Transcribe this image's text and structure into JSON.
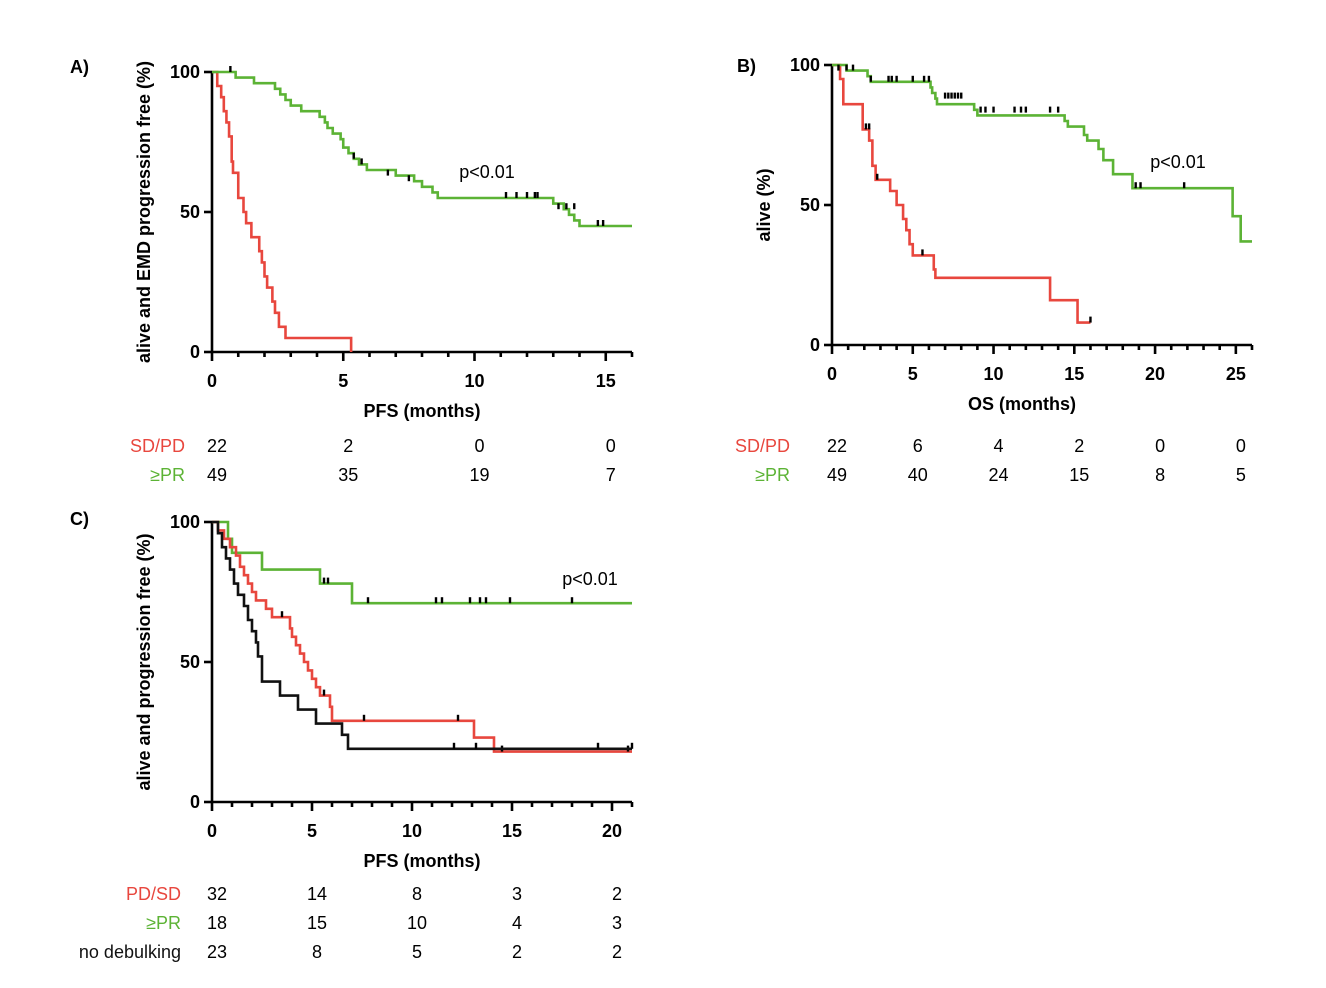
{
  "chart_data": [
    {
      "type": "line",
      "panel_label": "A)",
      "xlabel": "PFS (months)",
      "ylabel": "alive and EMD progression free  (%)",
      "xlim": [
        0,
        16
      ],
      "ylim": [
        0,
        100
      ],
      "xticks": [
        0,
        5,
        10,
        15
      ],
      "yticks": [
        0,
        50,
        100
      ],
      "annotation": "p<0.01",
      "series": [
        {
          "name": "SD/PD",
          "color": "#e8473e",
          "steps": [
            [
              0,
              100
            ],
            [
              0.2,
              95
            ],
            [
              0.35,
              91
            ],
            [
              0.45,
              86
            ],
            [
              0.55,
              82
            ],
            [
              0.65,
              77
            ],
            [
              0.75,
              68
            ],
            [
              0.8,
              64
            ],
            [
              1.0,
              55
            ],
            [
              1.2,
              50
            ],
            [
              1.3,
              46
            ],
            [
              1.5,
              41
            ],
            [
              1.8,
              36
            ],
            [
              1.9,
              32
            ],
            [
              2.0,
              27
            ],
            [
              2.1,
              23
            ],
            [
              2.3,
              18
            ],
            [
              2.4,
              14
            ],
            [
              2.55,
              9
            ],
            [
              2.8,
              5
            ],
            [
              5.3,
              0
            ]
          ],
          "end_x": 5.3,
          "censored": []
        },
        {
          "name": "≥PR",
          "color": "#5cb335",
          "steps": [
            [
              0,
              100
            ],
            [
              0.9,
              98
            ],
            [
              1.6,
              96
            ],
            [
              2.4,
              94
            ],
            [
              2.6,
              92
            ],
            [
              2.8,
              90
            ],
            [
              3.0,
              88
            ],
            [
              3.4,
              86
            ],
            [
              4.1,
              84
            ],
            [
              4.3,
              82
            ],
            [
              4.4,
              80
            ],
            [
              4.6,
              78
            ],
            [
              4.9,
              76
            ],
            [
              5.0,
              73
            ],
            [
              5.2,
              71
            ],
            [
              5.4,
              69
            ],
            [
              5.6,
              67
            ],
            [
              5.9,
              65
            ],
            [
              7.0,
              63
            ],
            [
              7.7,
              61
            ],
            [
              8.0,
              59
            ],
            [
              8.4,
              57
            ],
            [
              8.6,
              55
            ],
            [
              13.0,
              53
            ],
            [
              13.4,
              51
            ],
            [
              13.6,
              49
            ],
            [
              13.8,
              47
            ],
            [
              14.0,
              45
            ]
          ],
          "end_x": 16,
          "censored": [
            [
              0.7,
              100
            ],
            [
              5.4,
              69
            ],
            [
              5.7,
              67
            ],
            [
              6.7,
              63
            ],
            [
              7.5,
              61
            ],
            [
              11.2,
              55
            ],
            [
              11.6,
              55
            ],
            [
              12.0,
              55
            ],
            [
              12.3,
              55
            ],
            [
              12.4,
              55
            ],
            [
              13.2,
              51
            ],
            [
              13.5,
              51
            ],
            [
              13.8,
              51
            ],
            [
              14.7,
              45
            ],
            [
              14.9,
              45
            ]
          ]
        }
      ],
      "risk_table": {
        "time_points": [
          0,
          5,
          10,
          15
        ],
        "rows": [
          {
            "label": "SD/PD",
            "color": "#e8473e",
            "values": [
              "22",
              "2",
              "0",
              "0"
            ]
          },
          {
            "label": "≥PR",
            "color": "#5cb335",
            "values": [
              "49",
              "35",
              "19",
              "7"
            ]
          }
        ]
      }
    },
    {
      "type": "line",
      "panel_label": "B)",
      "xlabel": "OS (months)",
      "ylabel": "alive (%)",
      "xlim": [
        0,
        26
      ],
      "ylim": [
        0,
        100
      ],
      "xticks": [
        0,
        5,
        10,
        15,
        20,
        25
      ],
      "yticks": [
        0,
        50,
        100
      ],
      "annotation": "p<0.01",
      "series": [
        {
          "name": "SD/PD",
          "color": "#e8473e",
          "steps": [
            [
              0,
              100
            ],
            [
              0.5,
              95
            ],
            [
              0.7,
              86
            ],
            [
              1.9,
              77
            ],
            [
              2.3,
              73
            ],
            [
              2.5,
              64
            ],
            [
              2.7,
              59
            ],
            [
              3.6,
              55
            ],
            [
              4.0,
              50
            ],
            [
              4.4,
              45
            ],
            [
              4.6,
              41
            ],
            [
              4.8,
              36
            ],
            [
              5.0,
              32
            ],
            [
              6.3,
              27
            ],
            [
              6.4,
              24
            ],
            [
              13.5,
              16
            ],
            [
              15.2,
              8
            ]
          ],
          "end_x": 16,
          "censored": [
            [
              2.1,
              77
            ],
            [
              2.3,
              77
            ],
            [
              2.8,
              59
            ],
            [
              5.6,
              32
            ],
            [
              16.0,
              8
            ]
          ]
        },
        {
          "name": "≥PR",
          "color": "#5cb335",
          "steps": [
            [
              0,
              100
            ],
            [
              0.9,
              98
            ],
            [
              2.2,
              96
            ],
            [
              2.4,
              94
            ],
            [
              6.1,
              92
            ],
            [
              6.2,
              90
            ],
            [
              6.4,
              88
            ],
            [
              6.5,
              86
            ],
            [
              8.8,
              84
            ],
            [
              9.0,
              82
            ],
            [
              14.4,
              80
            ],
            [
              14.6,
              78
            ],
            [
              15.6,
              75
            ],
            [
              15.8,
              73
            ],
            [
              16.5,
              70
            ],
            [
              16.8,
              66
            ],
            [
              17.4,
              61
            ],
            [
              18.6,
              56
            ],
            [
              24.8,
              46
            ],
            [
              25.3,
              37
            ]
          ],
          "end_x": 26,
          "censored": [
            [
              0.4,
              98
            ],
            [
              0.9,
              98
            ],
            [
              1.3,
              98
            ],
            [
              2.4,
              94
            ],
            [
              3.5,
              94
            ],
            [
              3.7,
              94
            ],
            [
              4.0,
              94
            ],
            [
              5.0,
              94
            ],
            [
              5.7,
              94
            ],
            [
              6.0,
              94
            ],
            [
              7.0,
              88
            ],
            [
              7.2,
              88
            ],
            [
              7.4,
              88
            ],
            [
              7.6,
              88
            ],
            [
              7.8,
              88
            ],
            [
              8.0,
              88
            ],
            [
              9.2,
              83
            ],
            [
              9.5,
              83
            ],
            [
              10.0,
              83
            ],
            [
              11.3,
              83
            ],
            [
              11.7,
              83
            ],
            [
              12.0,
              83
            ],
            [
              13.5,
              83
            ],
            [
              14.0,
              83
            ],
            [
              18.8,
              56
            ],
            [
              19.1,
              56
            ],
            [
              21.8,
              56
            ]
          ]
        }
      ],
      "risk_table": {
        "time_points": [
          0,
          5,
          10,
          15,
          20,
          25
        ],
        "rows": [
          {
            "label": "SD/PD",
            "color": "#e8473e",
            "values": [
              "22",
              "6",
              "4",
              "2",
              "0",
              "0"
            ]
          },
          {
            "label": "≥PR",
            "color": "#5cb335",
            "values": [
              "49",
              "40",
              "24",
              "15",
              "8",
              "5"
            ]
          }
        ]
      }
    },
    {
      "type": "line",
      "panel_label": "C)",
      "xlabel": "PFS (months)",
      "ylabel": "alive and progression free (%)",
      "xlim": [
        0,
        21
      ],
      "ylim": [
        0,
        100
      ],
      "xticks": [
        0,
        5,
        10,
        15,
        20
      ],
      "yticks": [
        0,
        50,
        100
      ],
      "annotation": "p<0.01",
      "series": [
        {
          "name": "≥PR",
          "color": "#5cb335",
          "steps": [
            [
              0,
              100
            ],
            [
              0.8,
              94
            ],
            [
              1.0,
              89
            ],
            [
              2.5,
              83
            ],
            [
              5.4,
              78
            ],
            [
              7.0,
              71
            ]
          ],
          "end_x": 21,
          "censored": [
            [
              5.6,
              78
            ],
            [
              5.8,
              78
            ],
            [
              7.8,
              71
            ],
            [
              11.2,
              71
            ],
            [
              11.5,
              71
            ],
            [
              12.9,
              71
            ],
            [
              13.4,
              71
            ],
            [
              13.7,
              71
            ],
            [
              14.9,
              71
            ],
            [
              18.0,
              71
            ]
          ]
        },
        {
          "name": "PD/SD",
          "color": "#e8473e",
          "steps": [
            [
              0,
              100
            ],
            [
              0.3,
              97
            ],
            [
              0.6,
              94
            ],
            [
              0.9,
              91
            ],
            [
              1.2,
              88
            ],
            [
              1.4,
              84
            ],
            [
              1.6,
              81
            ],
            [
              1.8,
              78
            ],
            [
              2.0,
              75
            ],
            [
              2.2,
              72
            ],
            [
              2.7,
              69
            ],
            [
              3.0,
              66
            ],
            [
              3.9,
              62
            ],
            [
              4.0,
              59
            ],
            [
              4.2,
              56
            ],
            [
              4.4,
              53
            ],
            [
              4.6,
              50
            ],
            [
              4.8,
              47
            ],
            [
              5.0,
              44
            ],
            [
              5.2,
              41
            ],
            [
              5.4,
              38
            ],
            [
              5.9,
              34
            ],
            [
              6.0,
              29
            ],
            [
              13.1,
              23
            ],
            [
              14.1,
              18
            ]
          ],
          "end_x": 21,
          "censored": [
            [
              3.5,
              66
            ],
            [
              5.6,
              38
            ],
            [
              7.6,
              29
            ],
            [
              12.3,
              29
            ],
            [
              14.5,
              18
            ],
            [
              20.8,
              18
            ]
          ]
        },
        {
          "name": "no debulking",
          "color": "#111111",
          "steps": [
            [
              0,
              100
            ],
            [
              0.3,
              96
            ],
            [
              0.5,
              91
            ],
            [
              0.7,
              87
            ],
            [
              0.9,
              83
            ],
            [
              1.1,
              78
            ],
            [
              1.3,
              74
            ],
            [
              1.6,
              70
            ],
            [
              1.8,
              65
            ],
            [
              2.0,
              61
            ],
            [
              2.2,
              57
            ],
            [
              2.3,
              52
            ],
            [
              2.5,
              43
            ],
            [
              3.4,
              38
            ],
            [
              4.3,
              33
            ],
            [
              5.2,
              28
            ],
            [
              6.5,
              24
            ],
            [
              6.8,
              19
            ]
          ],
          "end_x": 21,
          "censored": [
            [
              12.1,
              19
            ],
            [
              13.2,
              19
            ],
            [
              19.3,
              19
            ],
            [
              21.0,
              19
            ]
          ]
        }
      ],
      "risk_table": {
        "time_points": [
          0,
          5,
          10,
          15,
          20
        ],
        "rows": [
          {
            "label": "PD/SD",
            "color": "#e8473e",
            "values": [
              "32",
              "14",
              "8",
              "3",
              "2"
            ]
          },
          {
            "label": "≥PR",
            "color": "#5cb335",
            "values": [
              "18",
              "15",
              "10",
              "4",
              "3"
            ]
          },
          {
            "label": "no debulking",
            "color": "#111111",
            "values": [
              "23",
              "8",
              "5",
              "2",
              "2"
            ]
          }
        ]
      }
    }
  ]
}
